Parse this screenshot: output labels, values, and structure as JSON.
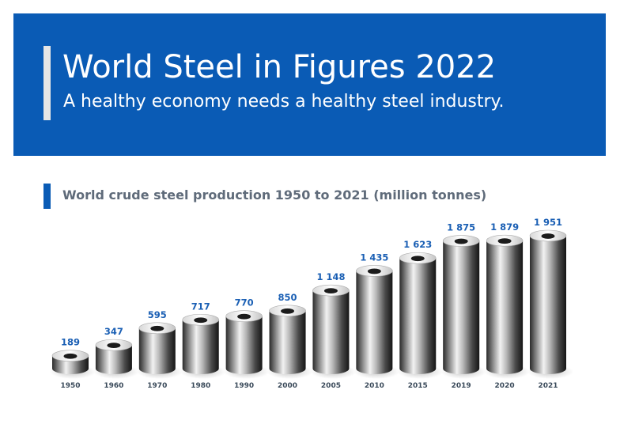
{
  "header": {
    "title": "World Steel in Figures 2022",
    "subtitle": "A healthy economy needs a healthy steel industry."
  },
  "colors": {
    "brand_blue": "#0a5bb5",
    "value_label": "#1a5fb4",
    "year_label": "#3a4a5a"
  },
  "chart_data": {
    "type": "bar",
    "title": "World crude steel production 1950 to 2021 (million tonnes)",
    "xlabel": "",
    "ylabel": "",
    "categories": [
      "1950",
      "1960",
      "1970",
      "1980",
      "1990",
      "2000",
      "2005",
      "2010",
      "2015",
      "2019",
      "2020",
      "2021"
    ],
    "values": [
      189,
      347,
      595,
      717,
      770,
      850,
      1148,
      1435,
      1623,
      1875,
      1879,
      1951
    ],
    "value_labels": [
      "189",
      "347",
      "595",
      "717",
      "770",
      "850",
      "1 148",
      "1 435",
      "1 623",
      "1 875",
      "1 879",
      "1 951"
    ],
    "ylim": [
      0,
      1951
    ],
    "grid": false,
    "legend": "none"
  }
}
